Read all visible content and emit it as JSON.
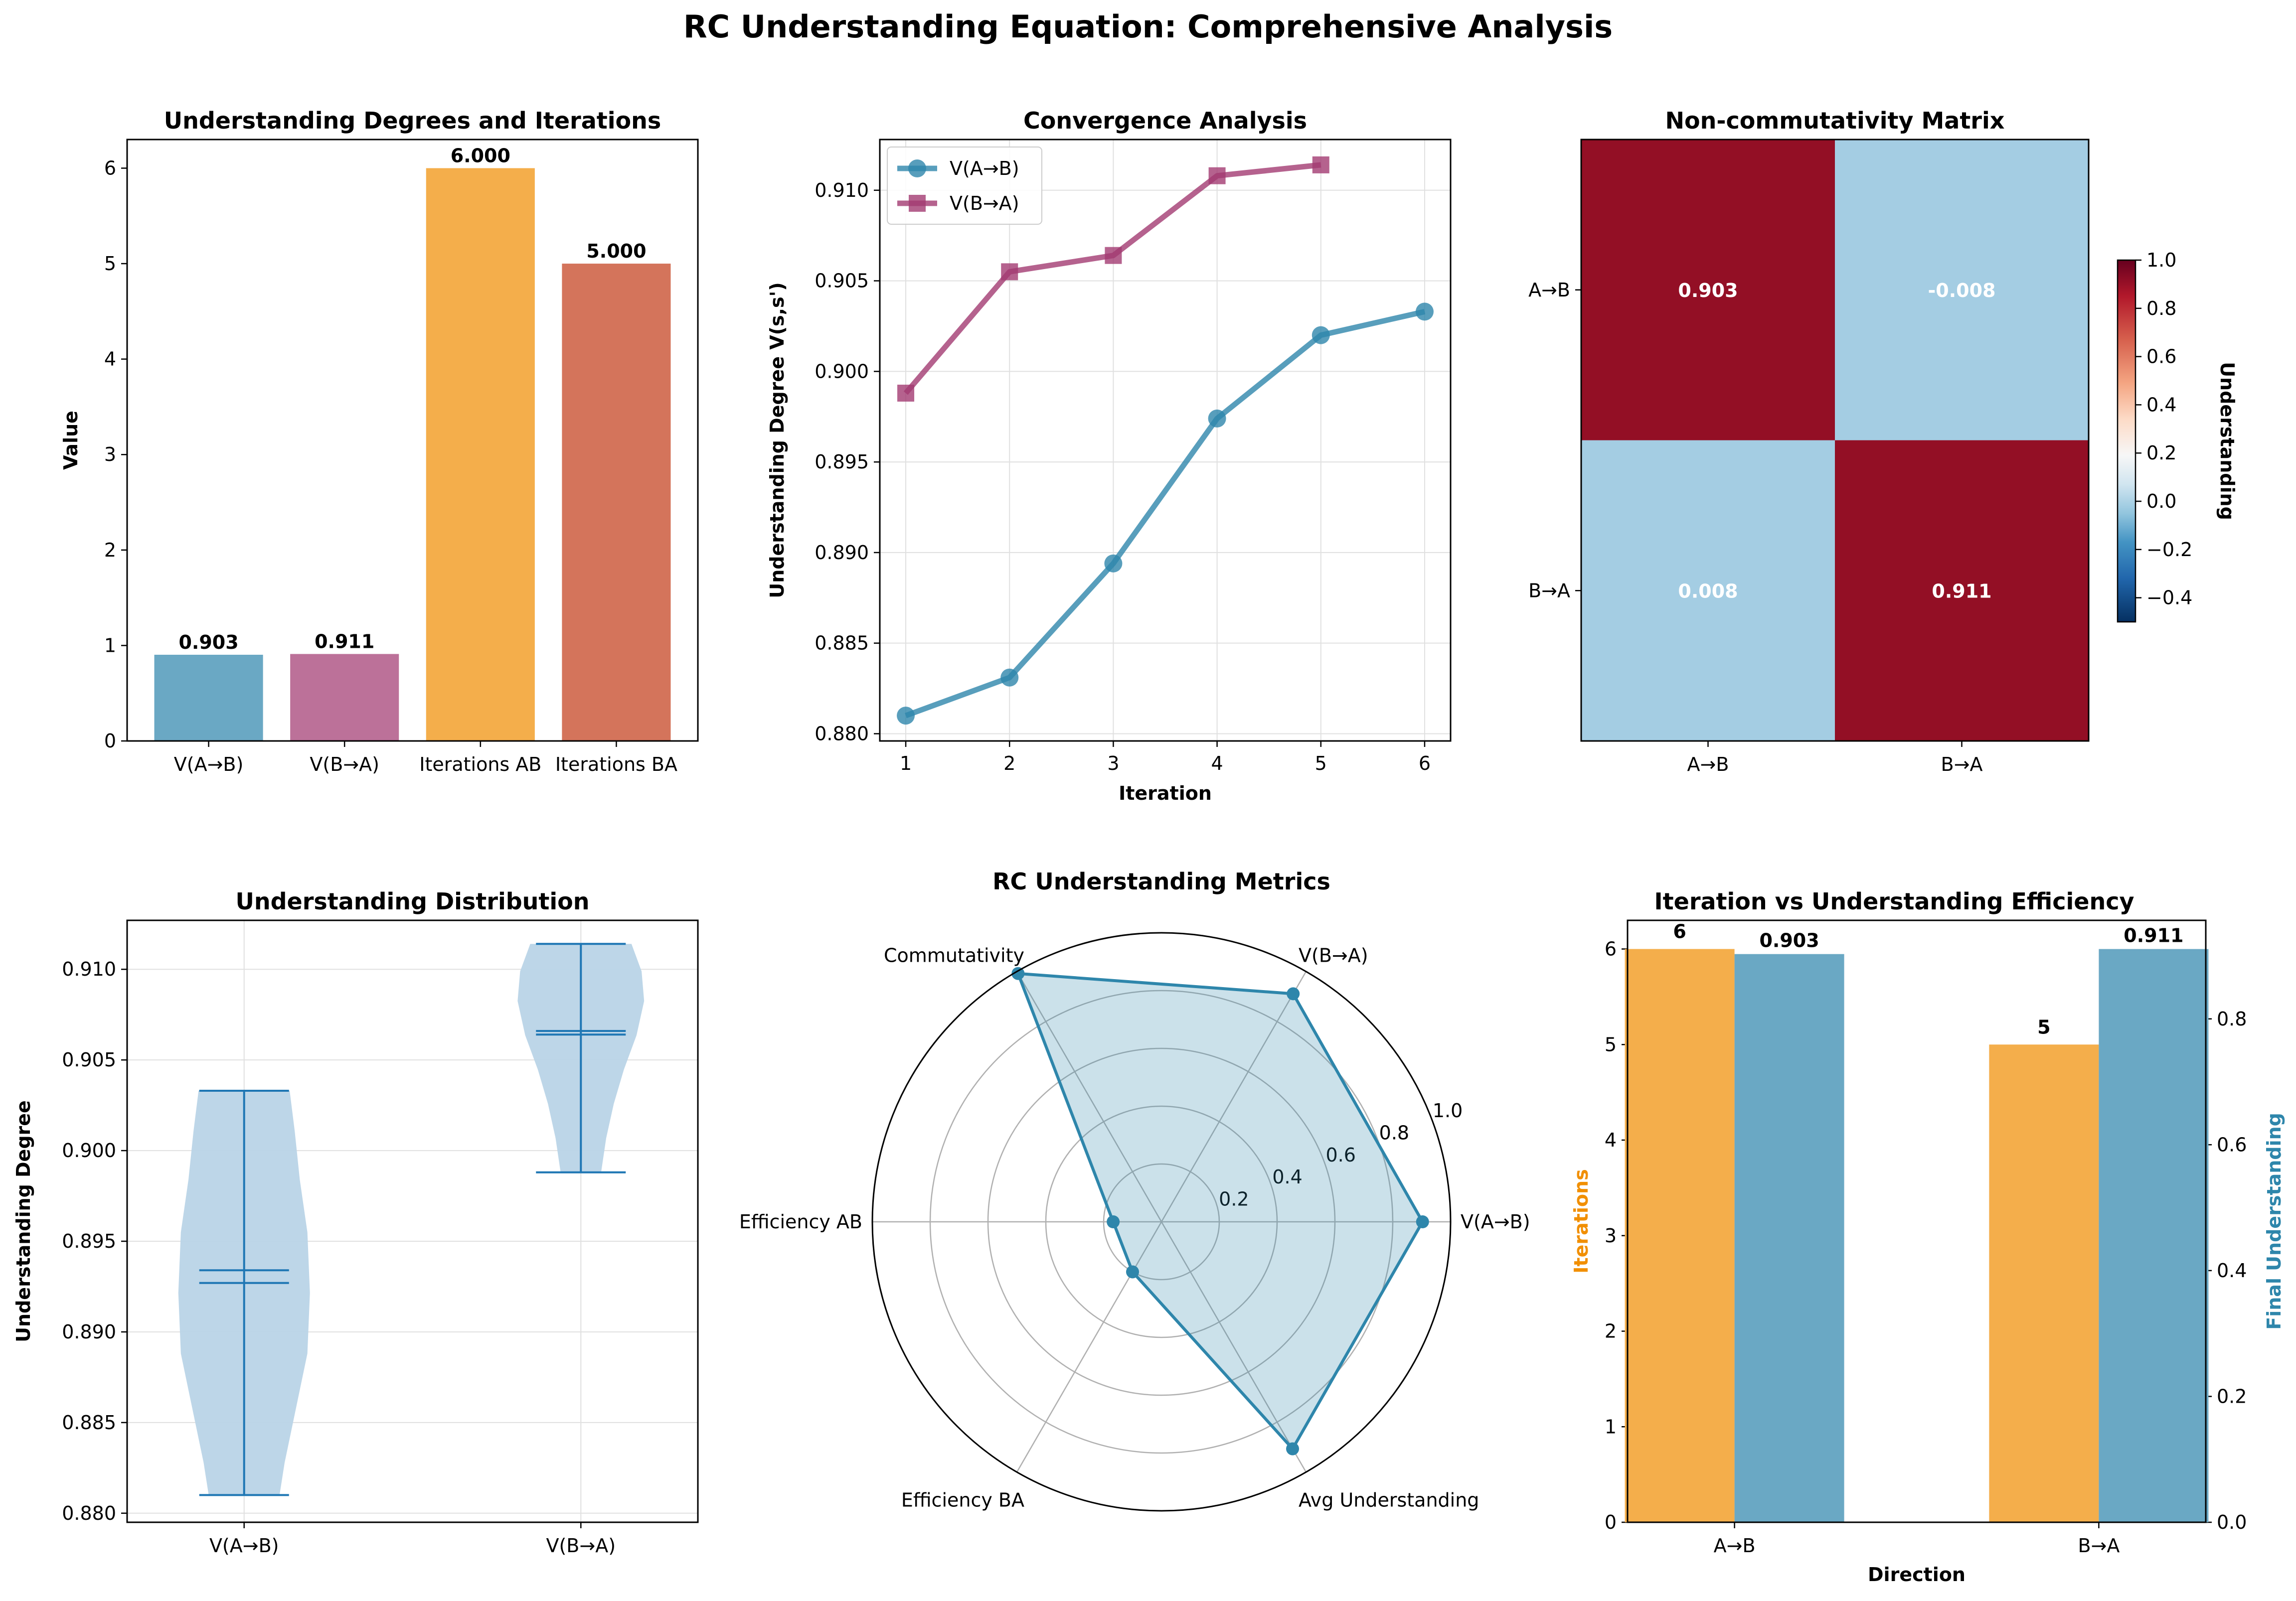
{
  "figure": {
    "title": "RC Understanding Equation: Comprehensive Analysis"
  },
  "colors": {
    "blue": "#2e86ab",
    "blue_bar": "#6aa8c4",
    "magenta": "#a23b72",
    "magenta_bar": "#bc7199",
    "orange": "#f18f01",
    "orange_bar": "#f4ae4b",
    "red_bar": "#d4745b",
    "violin_fill": "#b9d4e7",
    "violin_line": "#1f77b4",
    "heat_high": "#930f25",
    "heat_low": "#a4cde3",
    "grid": "#e0e0e0"
  },
  "chart_data": [
    {
      "id": "bar1",
      "type": "bar",
      "title": "Understanding Degrees and Iterations",
      "xlabel": "",
      "ylabel": "Value",
      "categories": [
        "V(A→B)",
        "V(B→A)",
        "Iterations AB",
        "Iterations BA"
      ],
      "values": [
        0.903,
        0.911,
        6.0,
        5.0
      ],
      "data_labels": [
        "0.903",
        "0.911",
        "6.000",
        "5.000"
      ],
      "bar_colors": [
        "#6aa8c4",
        "#bc7199",
        "#f4ae4b",
        "#d4745b"
      ],
      "ylim": [
        0,
        6.3
      ],
      "yticks": [
        0,
        1,
        2,
        3,
        4,
        5,
        6
      ],
      "ytick_labels": [
        "0",
        "1",
        "2",
        "3",
        "4",
        "5",
        "6"
      ],
      "grid": false
    },
    {
      "id": "line1",
      "type": "line",
      "title": "Convergence Analysis",
      "xlabel": "Iteration",
      "ylabel": "Understanding Degree V(s,s')",
      "series": [
        {
          "name": "V(A→B)",
          "x": [
            1,
            2,
            3,
            4,
            5,
            6
          ],
          "y": [
            0.881,
            0.8831,
            0.8894,
            0.8974,
            0.902,
            0.9033
          ],
          "color": "#2e86ab",
          "marker": "circle"
        },
        {
          "name": "V(B→A)",
          "x": [
            1,
            2,
            3,
            4,
            5
          ],
          "y": [
            0.8988,
            0.9055,
            0.9064,
            0.9108,
            0.9114
          ],
          "color": "#a23b72",
          "marker": "square"
        }
      ],
      "xlim": [
        0.75,
        6.25
      ],
      "ylim": [
        0.8796,
        0.9128
      ],
      "xticks": [
        1,
        2,
        3,
        4,
        5,
        6
      ],
      "xtick_labels": [
        "1",
        "2",
        "3",
        "4",
        "5",
        "6"
      ],
      "yticks": [
        0.88,
        0.885,
        0.89,
        0.895,
        0.9,
        0.905,
        0.91
      ],
      "ytick_labels": [
        "0.880",
        "0.885",
        "0.890",
        "0.895",
        "0.900",
        "0.905",
        "0.910"
      ],
      "legend": "upper-left",
      "grid": true
    },
    {
      "id": "heat1",
      "type": "heatmap",
      "title": "Non-commutativity Matrix",
      "row_labels": [
        "A→B",
        "B→A"
      ],
      "col_labels": [
        "A→B",
        "B→A"
      ],
      "values": [
        [
          0.903,
          -0.008
        ],
        [
          0.008,
          0.911
        ]
      ],
      "value_labels": [
        [
          "0.903",
          "-0.008"
        ],
        [
          "0.008",
          "0.911"
        ]
      ],
      "colorbar_label": "Understanding",
      "colorbar_range": [
        -0.5,
        1.0
      ],
      "colorbar_ticks": [
        -0.4,
        -0.2,
        0.0,
        0.2,
        0.4,
        0.6,
        0.8,
        1.0
      ],
      "colorbar_tick_labels": [
        "−0.4",
        "−0.2",
        "0.0",
        "0.2",
        "0.4",
        "0.6",
        "0.8",
        "1.0"
      ]
    },
    {
      "id": "violin1",
      "type": "violin",
      "title": "Understanding Distribution",
      "ylabel": "Understanding Degree",
      "categories": [
        "V(A→B)",
        "V(B→A)"
      ],
      "stats": [
        {
          "min": 0.881,
          "max": 0.9033,
          "mean": 0.8934,
          "median": 0.8927
        },
        {
          "min": 0.8988,
          "max": 0.9114,
          "mean": 0.9066,
          "median": 0.9064
        }
      ],
      "ylim": [
        0.8795,
        0.9127
      ],
      "yticks": [
        0.88,
        0.885,
        0.89,
        0.895,
        0.9,
        0.905,
        0.91
      ],
      "ytick_labels": [
        "0.880",
        "0.885",
        "0.890",
        "0.895",
        "0.900",
        "0.905",
        "0.910"
      ],
      "grid": true
    },
    {
      "id": "radar1",
      "type": "radar",
      "title": "RC Understanding Metrics",
      "categories": [
        "V(A→B)",
        "V(B→A)",
        "Commutativity",
        "Efficiency AB",
        "Efficiency BA",
        "Avg Understanding"
      ],
      "values": [
        0.903,
        0.911,
        0.992,
        0.167,
        0.2,
        0.907
      ],
      "rlim": [
        0,
        1.0
      ],
      "rticks": [
        0.2,
        0.4,
        0.6,
        0.8,
        1.0
      ],
      "rtick_labels": [
        "0.2",
        "0.4",
        "0.6",
        "0.8",
        "1.0"
      ]
    },
    {
      "id": "dual1",
      "type": "bar",
      "title": "Iteration vs Understanding Efficiency",
      "xlabel": "Direction",
      "categories": [
        "A→B",
        "B→A"
      ],
      "series": [
        {
          "name": "Iterations",
          "values": [
            6,
            5
          ],
          "data_labels": [
            "6",
            "5"
          ],
          "axis": "left",
          "color": "#f4ae4b"
        },
        {
          "name": "Final Understanding",
          "values": [
            0.903,
            0.911
          ],
          "data_labels": [
            "0.903",
            "0.911"
          ],
          "axis": "right",
          "color": "#6aa8c4"
        }
      ],
      "ylabel_left": "Iterations",
      "ylabel_right": "Final Understanding",
      "ylim_left": [
        0,
        6.3
      ],
      "ylim_right": [
        0,
        0.9566
      ],
      "yticks_left": [
        0,
        1,
        2,
        3,
        4,
        5,
        6
      ],
      "ytick_labels_left": [
        "0",
        "1",
        "2",
        "3",
        "4",
        "5",
        "6"
      ],
      "yticks_right": [
        0,
        0.2,
        0.4,
        0.6,
        0.8
      ],
      "ytick_labels_right": [
        "0.0",
        "0.2",
        "0.4",
        "0.6",
        "0.8"
      ]
    }
  ]
}
